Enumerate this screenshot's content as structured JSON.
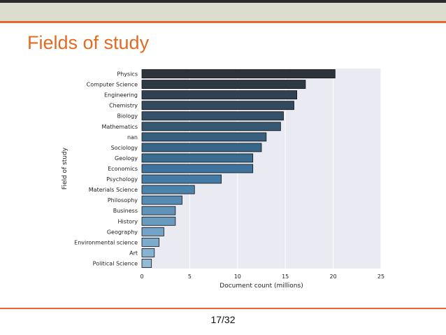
{
  "slide": {
    "title": "Fields of study",
    "page_number": "17/32"
  },
  "colors": {
    "accent": "#e8662c",
    "title": "#e06b23",
    "header_band": "#dcddcf",
    "plot_background": "#eaeaf2"
  },
  "chart_data": {
    "type": "bar",
    "orientation": "horizontal",
    "xlabel": "Document count (millions)",
    "ylabel": "Field of study",
    "xlim": [
      0,
      25
    ],
    "xticks": [
      0,
      5,
      10,
      15,
      20,
      25
    ],
    "grid": true,
    "categories": [
      "Physics",
      "Computer Science",
      "Engineering",
      "Chemistry",
      "Biology",
      "Mathematics",
      "nan",
      "Sociology",
      "Geology",
      "Economics",
      "Psychology",
      "Materials Science",
      "Philosophy",
      "Business",
      "History",
      "Geography",
      "Environmental science",
      "Art",
      "Political Science"
    ],
    "values": [
      20.2,
      17.1,
      16.2,
      15.9,
      14.8,
      14.5,
      13.0,
      12.5,
      11.6,
      11.6,
      8.3,
      5.5,
      4.2,
      3.5,
      3.5,
      2.3,
      1.8,
      1.3,
      1.0
    ],
    "colors": [
      "#2d3338",
      "#2d3a46",
      "#304252",
      "#334a5e",
      "#345169",
      "#355873",
      "#375f7e",
      "#386688",
      "#3a6c92",
      "#3d739c",
      "#447ba6",
      "#4c83ad",
      "#558bb4",
      "#5f93ba",
      "#699bc0",
      "#73a3c6",
      "#7dabcc",
      "#87b3d2",
      "#91bbd7"
    ]
  }
}
